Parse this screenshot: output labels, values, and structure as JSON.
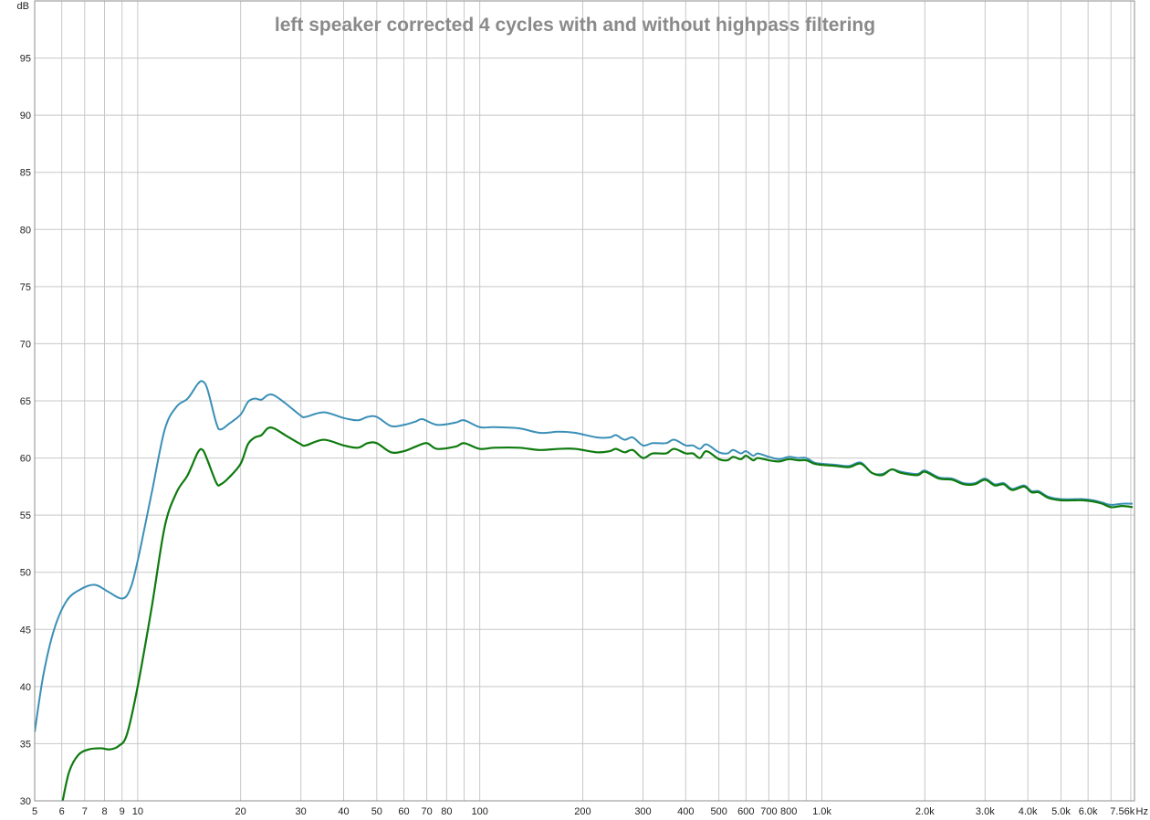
{
  "chart_data": {
    "type": "line",
    "title": "left speaker corrected 4 cycles with and without highpass filtering",
    "ylabel": "dB",
    "xlabel": "Hz",
    "xscale": "log",
    "xlim": [
      5,
      8200
    ],
    "ylim": [
      30,
      100
    ],
    "grid": true,
    "colors": {
      "grid": "#c8c8c8",
      "axis": "#8c8c8c",
      "title": "#8a8a8a"
    },
    "y_ticks": [
      30,
      35,
      40,
      45,
      50,
      55,
      60,
      65,
      70,
      75,
      80,
      85,
      90,
      95
    ],
    "x_ticks": [
      {
        "v": 5,
        "label": "5"
      },
      {
        "v": 6,
        "label": "6"
      },
      {
        "v": 7,
        "label": "7"
      },
      {
        "v": 8,
        "label": "8"
      },
      {
        "v": 9,
        "label": "9"
      },
      {
        "v": 10,
        "label": "10"
      },
      {
        "v": 20,
        "label": "20"
      },
      {
        "v": 30,
        "label": "30"
      },
      {
        "v": 40,
        "label": "40"
      },
      {
        "v": 50,
        "label": "50"
      },
      {
        "v": 60,
        "label": "60"
      },
      {
        "v": 70,
        "label": "70"
      },
      {
        "v": 80,
        "label": "80"
      },
      {
        "v": 100,
        "label": "100"
      },
      {
        "v": 200,
        "label": "200"
      },
      {
        "v": 300,
        "label": "300"
      },
      {
        "v": 400,
        "label": "400"
      },
      {
        "v": 500,
        "label": "500"
      },
      {
        "v": 600,
        "label": "600"
      },
      {
        "v": 700,
        "label": "700"
      },
      {
        "v": 800,
        "label": "800"
      },
      {
        "v": 1000,
        "label": "1.0k"
      },
      {
        "v": 2000,
        "label": "2.0k"
      },
      {
        "v": 3000,
        "label": "3.0k"
      },
      {
        "v": 4000,
        "label": "4.0k"
      },
      {
        "v": 5000,
        "label": "5.0k"
      },
      {
        "v": 6000,
        "label": "6.0k"
      },
      {
        "v": 7560,
        "label": "7.56k"
      }
    ],
    "x_gridlines": [
      5,
      6,
      7,
      8,
      9,
      10,
      20,
      30,
      40,
      50,
      60,
      70,
      80,
      90,
      100,
      200,
      300,
      400,
      500,
      600,
      700,
      800,
      900,
      1000,
      2000,
      3000,
      4000,
      5000,
      6000,
      7000,
      8000
    ],
    "series": [
      {
        "color": "#3a8fb7",
        "width": 2,
        "points": [
          [
            5,
            36
          ],
          [
            5.3,
            41
          ],
          [
            5.7,
            45
          ],
          [
            6.2,
            47.5
          ],
          [
            6.8,
            48.5
          ],
          [
            7.5,
            48.9
          ],
          [
            8.2,
            48.3
          ],
          [
            9,
            47.7
          ],
          [
            9.5,
            48.5
          ],
          [
            10,
            51
          ],
          [
            11,
            57
          ],
          [
            12,
            62.5
          ],
          [
            13,
            64.5
          ],
          [
            14,
            65.2
          ],
          [
            15,
            66.5
          ],
          [
            15.5,
            66.7
          ],
          [
            16,
            66
          ],
          [
            17,
            63
          ],
          [
            17.5,
            62.5
          ],
          [
            18.5,
            63
          ],
          [
            20,
            63.8
          ],
          [
            21,
            64.9
          ],
          [
            22,
            65.2
          ],
          [
            23,
            65.1
          ],
          [
            24,
            65.5
          ],
          [
            25,
            65.5
          ],
          [
            27,
            64.8
          ],
          [
            30,
            63.7
          ],
          [
            31,
            63.6
          ],
          [
            35,
            64
          ],
          [
            40,
            63.5
          ],
          [
            44,
            63.3
          ],
          [
            47,
            63.6
          ],
          [
            50,
            63.6
          ],
          [
            55,
            62.8
          ],
          [
            60,
            62.9
          ],
          [
            65,
            63.2
          ],
          [
            68,
            63.4
          ],
          [
            75,
            62.9
          ],
          [
            85,
            63.1
          ],
          [
            90,
            63.3
          ],
          [
            100,
            62.7
          ],
          [
            110,
            62.7
          ],
          [
            130,
            62.6
          ],
          [
            150,
            62.2
          ],
          [
            170,
            62.3
          ],
          [
            190,
            62.2
          ],
          [
            220,
            61.8
          ],
          [
            240,
            61.8
          ],
          [
            250,
            62
          ],
          [
            265,
            61.6
          ],
          [
            280,
            61.8
          ],
          [
            300,
            61.1
          ],
          [
            320,
            61.3
          ],
          [
            350,
            61.3
          ],
          [
            370,
            61.6
          ],
          [
            400,
            61.1
          ],
          [
            420,
            61.1
          ],
          [
            440,
            60.8
          ],
          [
            460,
            61.2
          ],
          [
            500,
            60.5
          ],
          [
            530,
            60.4
          ],
          [
            550,
            60.7
          ],
          [
            580,
            60.4
          ],
          [
            600,
            60.6
          ],
          [
            630,
            60.2
          ],
          [
            650,
            60.4
          ],
          [
            700,
            60.1
          ],
          [
            750,
            59.9
          ],
          [
            800,
            60.1
          ],
          [
            850,
            60
          ],
          [
            900,
            60
          ],
          [
            950,
            59.6
          ],
          [
            1000,
            59.5
          ],
          [
            1100,
            59.4
          ],
          [
            1200,
            59.3
          ],
          [
            1300,
            59.6
          ],
          [
            1400,
            58.7
          ],
          [
            1500,
            58.6
          ],
          [
            1600,
            59
          ],
          [
            1700,
            58.8
          ],
          [
            1900,
            58.6
          ],
          [
            2000,
            58.9
          ],
          [
            2200,
            58.3
          ],
          [
            2400,
            58.2
          ],
          [
            2600,
            57.8
          ],
          [
            2800,
            57.8
          ],
          [
            3000,
            58.2
          ],
          [
            3200,
            57.7
          ],
          [
            3400,
            57.8
          ],
          [
            3600,
            57.3
          ],
          [
            3900,
            57.6
          ],
          [
            4100,
            57.1
          ],
          [
            4300,
            57.1
          ],
          [
            4600,
            56.6
          ],
          [
            5000,
            56.4
          ],
          [
            5500,
            56.4
          ],
          [
            5800,
            56.4
          ],
          [
            6200,
            56.3
          ],
          [
            6600,
            56.1
          ],
          [
            7000,
            55.9
          ],
          [
            7560,
            56.0
          ],
          [
            8100,
            56.0
          ]
        ]
      },
      {
        "color": "#0e7a0e",
        "width": 2.2,
        "points": [
          [
            6,
            29.6
          ],
          [
            6.3,
            32.5
          ],
          [
            6.7,
            34
          ],
          [
            7.2,
            34.5
          ],
          [
            7.8,
            34.6
          ],
          [
            8.3,
            34.5
          ],
          [
            8.8,
            34.8
          ],
          [
            9.3,
            35.8
          ],
          [
            10,
            40
          ],
          [
            11,
            47
          ],
          [
            12,
            54
          ],
          [
            13,
            57
          ],
          [
            14,
            58.5
          ],
          [
            15,
            60.5
          ],
          [
            15.5,
            60.7
          ],
          [
            16,
            59.8
          ],
          [
            17,
            57.8
          ],
          [
            17.5,
            57.7
          ],
          [
            18.5,
            58.3
          ],
          [
            20,
            59.5
          ],
          [
            21,
            61.2
          ],
          [
            22,
            61.8
          ],
          [
            23,
            62
          ],
          [
            24,
            62.6
          ],
          [
            25,
            62.6
          ],
          [
            27,
            62
          ],
          [
            30,
            61.2
          ],
          [
            31,
            61.1
          ],
          [
            35,
            61.6
          ],
          [
            40,
            61.1
          ],
          [
            44,
            60.9
          ],
          [
            47,
            61.3
          ],
          [
            50,
            61.3
          ],
          [
            55,
            60.5
          ],
          [
            60,
            60.6
          ],
          [
            65,
            61
          ],
          [
            70,
            61.3
          ],
          [
            75,
            60.8
          ],
          [
            85,
            61
          ],
          [
            90,
            61.3
          ],
          [
            100,
            60.8
          ],
          [
            110,
            60.9
          ],
          [
            130,
            60.9
          ],
          [
            150,
            60.7
          ],
          [
            170,
            60.8
          ],
          [
            190,
            60.8
          ],
          [
            220,
            60.5
          ],
          [
            240,
            60.6
          ],
          [
            250,
            60.8
          ],
          [
            265,
            60.5
          ],
          [
            280,
            60.7
          ],
          [
            300,
            60
          ],
          [
            320,
            60.4
          ],
          [
            350,
            60.4
          ],
          [
            370,
            60.8
          ],
          [
            400,
            60.4
          ],
          [
            420,
            60.4
          ],
          [
            440,
            60
          ],
          [
            460,
            60.6
          ],
          [
            500,
            59.9
          ],
          [
            530,
            59.8
          ],
          [
            550,
            60.1
          ],
          [
            580,
            59.9
          ],
          [
            600,
            60.2
          ],
          [
            630,
            59.8
          ],
          [
            650,
            60
          ],
          [
            700,
            59.8
          ],
          [
            750,
            59.7
          ],
          [
            800,
            59.9
          ],
          [
            850,
            59.8
          ],
          [
            900,
            59.8
          ],
          [
            950,
            59.5
          ],
          [
            1000,
            59.4
          ],
          [
            1100,
            59.3
          ],
          [
            1200,
            59.2
          ],
          [
            1300,
            59.5
          ],
          [
            1400,
            58.7
          ],
          [
            1500,
            58.5
          ],
          [
            1600,
            59
          ],
          [
            1700,
            58.7
          ],
          [
            1900,
            58.5
          ],
          [
            2000,
            58.8
          ],
          [
            2200,
            58.2
          ],
          [
            2400,
            58.1
          ],
          [
            2600,
            57.7
          ],
          [
            2800,
            57.7
          ],
          [
            3000,
            58.1
          ],
          [
            3200,
            57.6
          ],
          [
            3400,
            57.7
          ],
          [
            3600,
            57.2
          ],
          [
            3900,
            57.5
          ],
          [
            4100,
            57
          ],
          [
            4300,
            57
          ],
          [
            4600,
            56.5
          ],
          [
            5000,
            56.3
          ],
          [
            5500,
            56.3
          ],
          [
            5800,
            56.3
          ],
          [
            6200,
            56.2
          ],
          [
            6600,
            56
          ],
          [
            7000,
            55.7
          ],
          [
            7560,
            55.8
          ],
          [
            8100,
            55.7
          ]
        ]
      }
    ]
  }
}
